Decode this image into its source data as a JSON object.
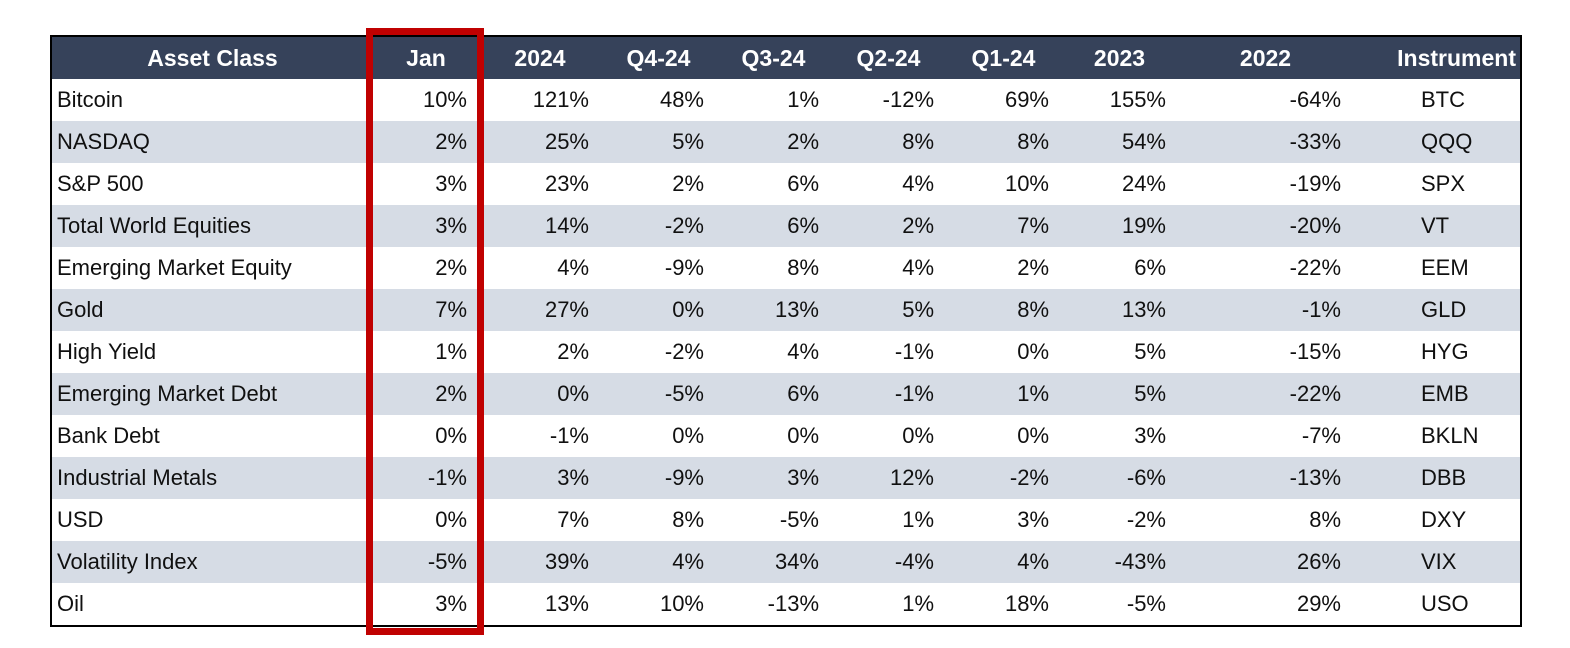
{
  "chart_data": {
    "type": "table",
    "columns": [
      "Asset Class",
      "Jan",
      "2024",
      "Q4-24",
      "Q3-24",
      "Q2-24",
      "Q1-24",
      "2023",
      "2022",
      "Instrument"
    ],
    "rows": [
      [
        "Bitcoin",
        "10%",
        "121%",
        "48%",
        "1%",
        "-12%",
        "69%",
        "155%",
        "-64%",
        "BTC"
      ],
      [
        "NASDAQ",
        "2%",
        "25%",
        "5%",
        "2%",
        "8%",
        "8%",
        "54%",
        "-33%",
        "QQQ"
      ],
      [
        "S&P 500",
        "3%",
        "23%",
        "2%",
        "6%",
        "4%",
        "10%",
        "24%",
        "-19%",
        "SPX"
      ],
      [
        "Total World Equities",
        "3%",
        "14%",
        "-2%",
        "6%",
        "2%",
        "7%",
        "19%",
        "-20%",
        "VT"
      ],
      [
        "Emerging Market Equity",
        "2%",
        "4%",
        "-9%",
        "8%",
        "4%",
        "2%",
        "6%",
        "-22%",
        "EEM"
      ],
      [
        "Gold",
        "7%",
        "27%",
        "0%",
        "13%",
        "5%",
        "8%",
        "13%",
        "-1%",
        "GLD"
      ],
      [
        "High Yield",
        "1%",
        "2%",
        "-2%",
        "4%",
        "-1%",
        "0%",
        "5%",
        "-15%",
        "HYG"
      ],
      [
        "Emerging Market Debt",
        "2%",
        "0%",
        "-5%",
        "6%",
        "-1%",
        "1%",
        "5%",
        "-22%",
        "EMB"
      ],
      [
        "Bank Debt",
        "0%",
        "-1%",
        "0%",
        "0%",
        "0%",
        "0%",
        "3%",
        "-7%",
        "BKLN"
      ],
      [
        "Industrial Metals",
        "-1%",
        "3%",
        "-9%",
        "3%",
        "12%",
        "-2%",
        "-6%",
        "-13%",
        "DBB"
      ],
      [
        "USD",
        "0%",
        "7%",
        "8%",
        "-5%",
        "1%",
        "3%",
        "-2%",
        "8%",
        "DXY"
      ],
      [
        "Volatility Index",
        "-5%",
        "39%",
        "4%",
        "34%",
        "-4%",
        "4%",
        "-43%",
        "26%",
        "VIX"
      ],
      [
        "Oil",
        "3%",
        "13%",
        "10%",
        "-13%",
        "1%",
        "18%",
        "-5%",
        "29%",
        "USO"
      ]
    ],
    "highlight": {
      "column": "Jan",
      "style": "red-outline-box"
    },
    "layout": {
      "header_position": "top",
      "zebra_striping": true,
      "grid": false
    }
  },
  "colors": {
    "header_bg": "#36425A",
    "header_text": "#FFFFFF",
    "row_alt": "#D6DCE5",
    "row_base": "#FFFFFF",
    "cell_text": "#101010",
    "table_border": "#000000",
    "highlight": "#C00101"
  }
}
